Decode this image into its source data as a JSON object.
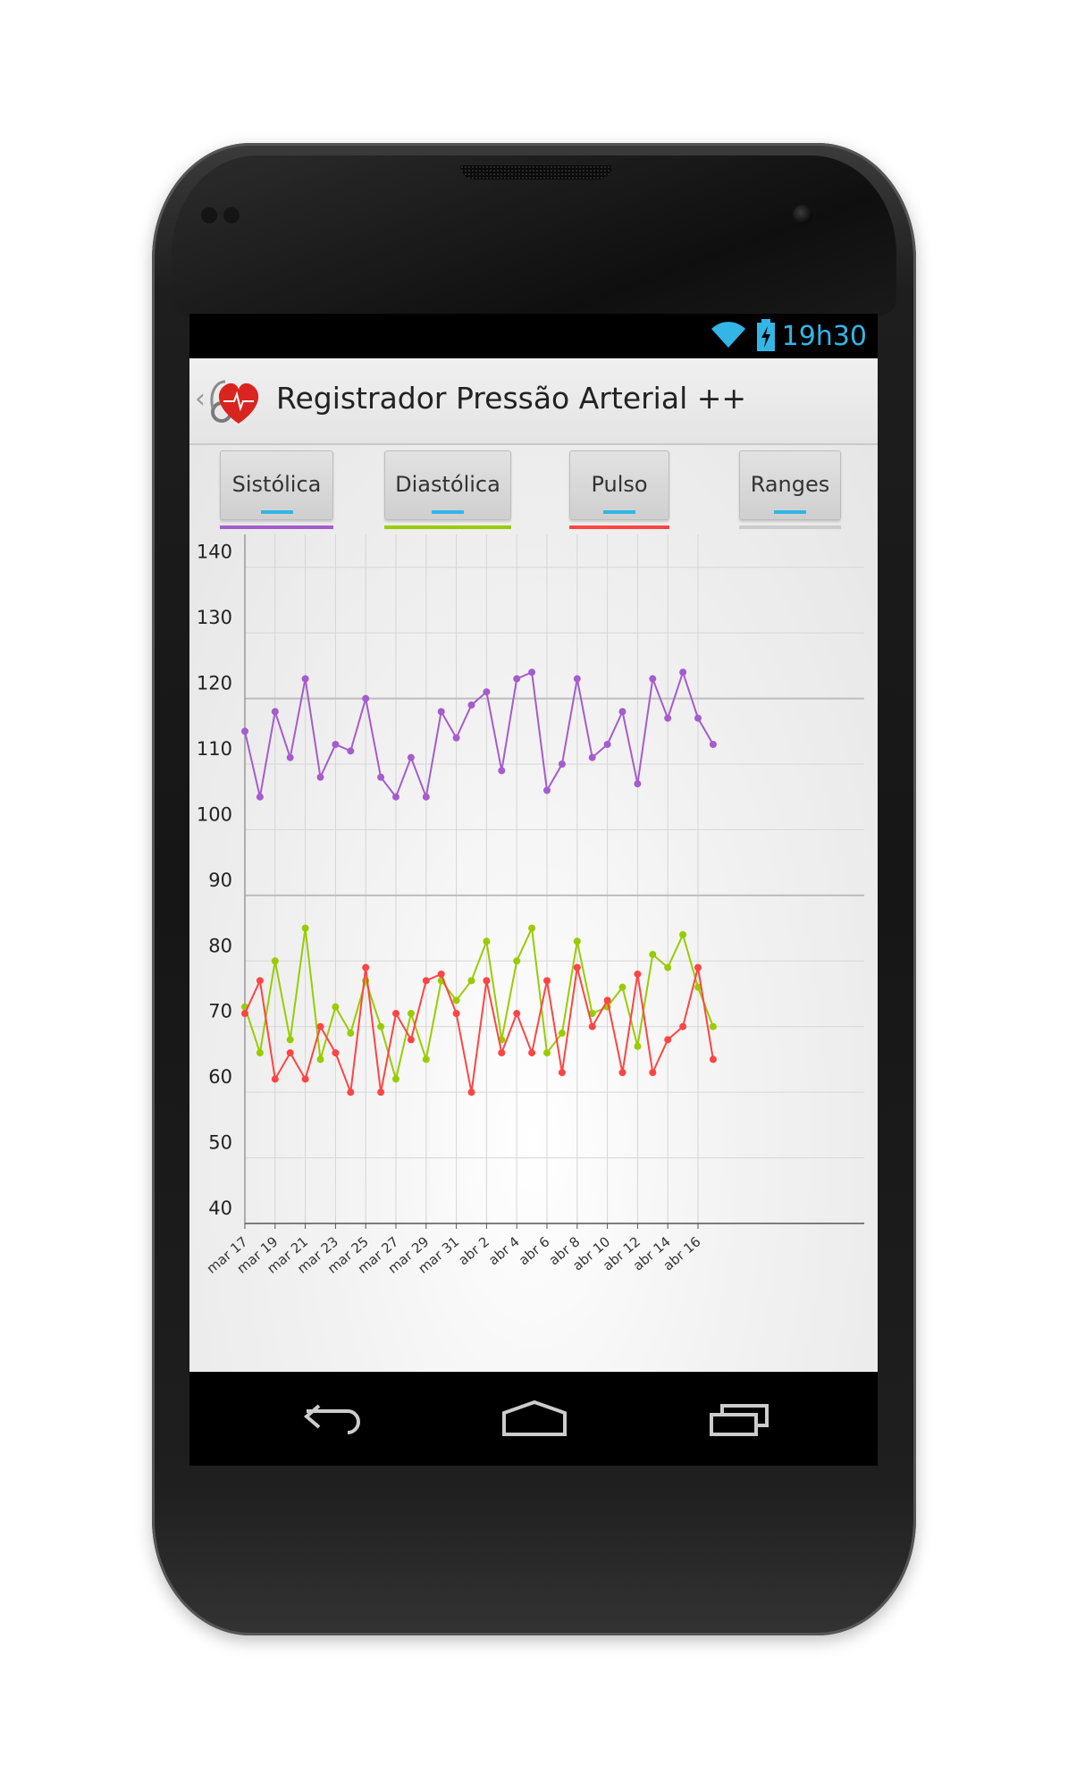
{
  "status_bar": {
    "time": "19h30",
    "icons": [
      "wifi-icon",
      "battery-charging-icon"
    ],
    "accent": "#33b5e5"
  },
  "action_bar": {
    "title": "Registrador Pressão Arterial ++",
    "icons": [
      "up-caret-icon",
      "heart-stethoscope-app-icon"
    ]
  },
  "tabs": [
    {
      "label": "Sistólica",
      "color": "#a55ccc"
    },
    {
      "label": "Diastólica",
      "color": "#99cc00"
    },
    {
      "label": "Pulso",
      "color": "#ff4444"
    },
    {
      "label": "Ranges",
      "color": "#cccccc"
    }
  ],
  "chart_data": {
    "type": "line",
    "ylim": [
      40,
      145
    ],
    "y_ticks": [
      140,
      130,
      120,
      110,
      100,
      90,
      80,
      70,
      60,
      50,
      40
    ],
    "x": [
      "mar 17",
      "mar 18",
      "mar 19",
      "mar 20",
      "mar 21",
      "mar 22",
      "mar 23",
      "mar 24",
      "mar 25",
      "mar 26",
      "mar 27",
      "mar 28",
      "mar 29",
      "mar 30",
      "mar 31",
      "abr 1",
      "abr 2",
      "abr 3",
      "abr 4",
      "abr 5",
      "abr 6",
      "abr 7",
      "abr 8",
      "abr 9",
      "abr 10",
      "abr 11",
      "abr 12",
      "abr 13",
      "abr 14",
      "abr 15",
      "abr 16",
      "abr 17"
    ],
    "x_tick_labels": [
      "mar 17",
      "mar 19",
      "mar 21",
      "mar 23",
      "mar 25",
      "mar 27",
      "mar 29",
      "mar 31",
      "abr 2",
      "abr 4",
      "abr 6",
      "abr 8",
      "abr 10",
      "abr 12",
      "abr 14",
      "abr 16"
    ],
    "grid": true,
    "reference_lines": [
      90,
      120
    ],
    "series": [
      {
        "color": "#a55ccc",
        "values": [
          115,
          105,
          118,
          111,
          123,
          108,
          113,
          112,
          120,
          108,
          105,
          111,
          105,
          118,
          114,
          119,
          121,
          109,
          123,
          124,
          106,
          110,
          123,
          111,
          113,
          118,
          107,
          123,
          117,
          124,
          117,
          113
        ]
      },
      {
        "color": "#99cc00",
        "values": [
          73,
          66,
          80,
          68,
          85,
          65,
          73,
          69,
          77,
          70,
          62,
          72,
          65,
          77,
          74,
          77,
          83,
          68,
          80,
          85,
          66,
          69,
          83,
          72,
          73,
          76,
          67,
          81,
          79,
          84,
          76,
          70
        ]
      },
      {
        "color": "#ff4444",
        "values": [
          72,
          77,
          62,
          66,
          62,
          70,
          66,
          60,
          79,
          60,
          72,
          68,
          77,
          78,
          72,
          60,
          77,
          66,
          72,
          66,
          77,
          63,
          79,
          70,
          74,
          63,
          78,
          63,
          68,
          70,
          79,
          65
        ]
      }
    ]
  },
  "nav_bar": {
    "icons": [
      "back-icon",
      "home-icon",
      "recent-apps-icon"
    ]
  }
}
